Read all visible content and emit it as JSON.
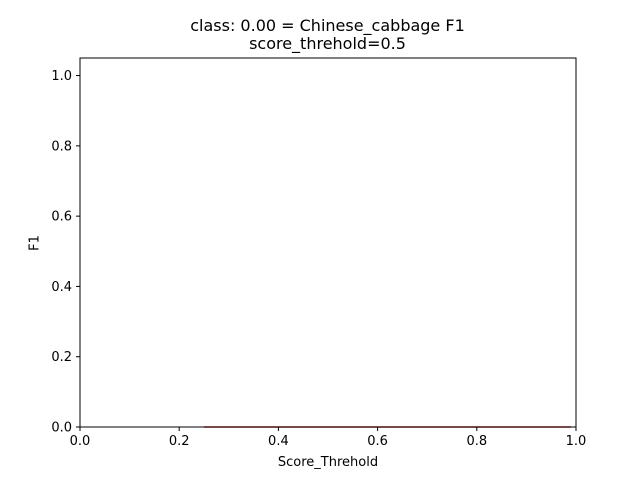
{
  "chart_data": {
    "type": "line",
    "title": "class: 0.00 = Chinese_cabbage F1",
    "subtitle": "score_threhold=0.5",
    "xlabel": "Score_Threhold",
    "ylabel": "F1",
    "xlim": [
      0.0,
      1.0
    ],
    "ylim": [
      0.0,
      1.05
    ],
    "x_ticks": [
      "0.0",
      "0.2",
      "0.4",
      "0.6",
      "0.8",
      "1.0"
    ],
    "y_ticks": [
      "0.0",
      "0.2",
      "0.4",
      "0.6",
      "0.8",
      "1.0"
    ],
    "grid": false,
    "series": [
      {
        "x": [
          0.25,
          0.99
        ],
        "y": [
          0.0,
          0.0
        ],
        "color": "#d62728"
      }
    ]
  }
}
